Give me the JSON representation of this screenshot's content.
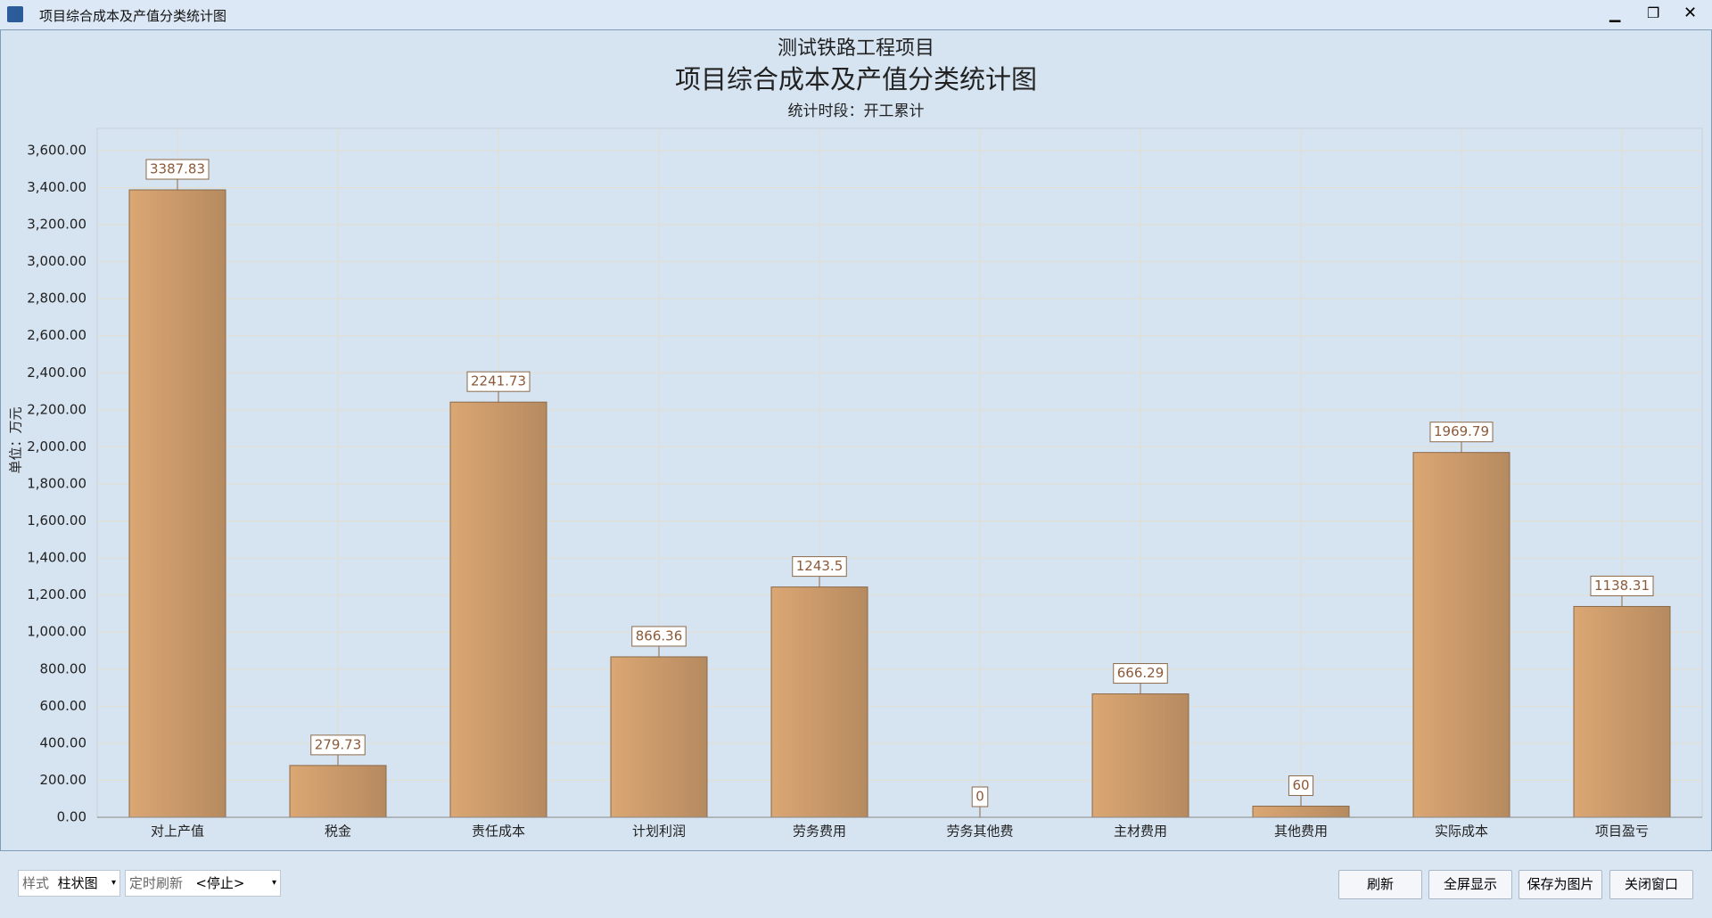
{
  "window": {
    "title": "项目综合成本及产值分类统计图"
  },
  "chart_data": {
    "type": "bar",
    "subtitle_top": "测试铁路工程项目",
    "title": "项目综合成本及产值分类统计图",
    "subtitle": "统计时段：开工累计",
    "y_label": "单位：万元",
    "categories": [
      "对上产值",
      "税金",
      "责任成本",
      "计划利润",
      "劳务费用",
      "劳务其他费",
      "主材费用",
      "其他费用",
      "实际成本",
      "项目盈亏"
    ],
    "values": [
      3387.83,
      279.73,
      2241.73,
      866.36,
      1243.5,
      0,
      666.29,
      60,
      1969.79,
      1138.31
    ],
    "color": "#dba773",
    "ylim": [
      0,
      3720
    ],
    "yticks": [
      {
        "value": 0,
        "label": "0.00"
      },
      {
        "value": 200,
        "label": "200.00"
      },
      {
        "value": 400,
        "label": "400.00"
      },
      {
        "value": 600,
        "label": "600.00"
      },
      {
        "value": 800,
        "label": "800.00"
      },
      {
        "value": 1000,
        "label": "1,000.00"
      },
      {
        "value": 1200,
        "label": "1,200.00"
      },
      {
        "value": 1400,
        "label": "1,400.00"
      },
      {
        "value": 1600,
        "label": "1,600.00"
      },
      {
        "value": 1800,
        "label": "1,800.00"
      },
      {
        "value": 2000,
        "label": "2,000.00"
      },
      {
        "value": 2200,
        "label": "2,200.00"
      },
      {
        "value": 2400,
        "label": "2,400.00"
      },
      {
        "value": 2600,
        "label": "2,600.00"
      },
      {
        "value": 2800,
        "label": "2,800.00"
      },
      {
        "value": 3000,
        "label": "3,000.00"
      },
      {
        "value": 3200,
        "label": "3,200.00"
      },
      {
        "value": 3400,
        "label": "3,400.00"
      },
      {
        "value": 3600,
        "label": "3,600.00"
      }
    ],
    "grid": true
  },
  "controls": {
    "style_label": "样式",
    "style_value": "柱状图",
    "refresh_label": "定时刷新",
    "refresh_value": "<停止>",
    "buttons": [
      "刷新",
      "全屏显示",
      "保存为图片",
      "关闭窗口"
    ]
  }
}
